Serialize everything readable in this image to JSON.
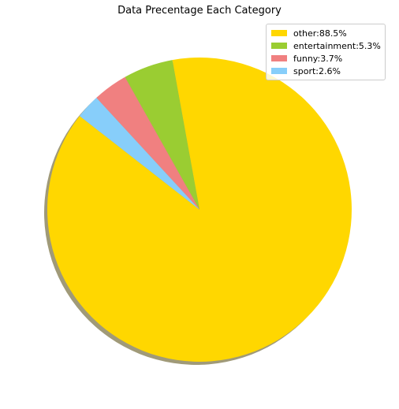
{
  "chart_data": {
    "type": "pie",
    "title": "Data Precentage Each Category",
    "slices": [
      {
        "label": "other:88.5%",
        "name": "other",
        "value": 88.5,
        "color": "#FFD700"
      },
      {
        "label": "entertainment:5.3%",
        "name": "entertainment",
        "value": 5.3,
        "color": "#9ACD32"
      },
      {
        "label": "funny:3.7%",
        "name": "funny",
        "value": 3.7,
        "color": "#F08080"
      },
      {
        "label": "sport:2.6%",
        "name": "sport",
        "value": 2.6,
        "color": "#87CEFA"
      }
    ],
    "shadow": true,
    "legend_position": "top-right"
  }
}
